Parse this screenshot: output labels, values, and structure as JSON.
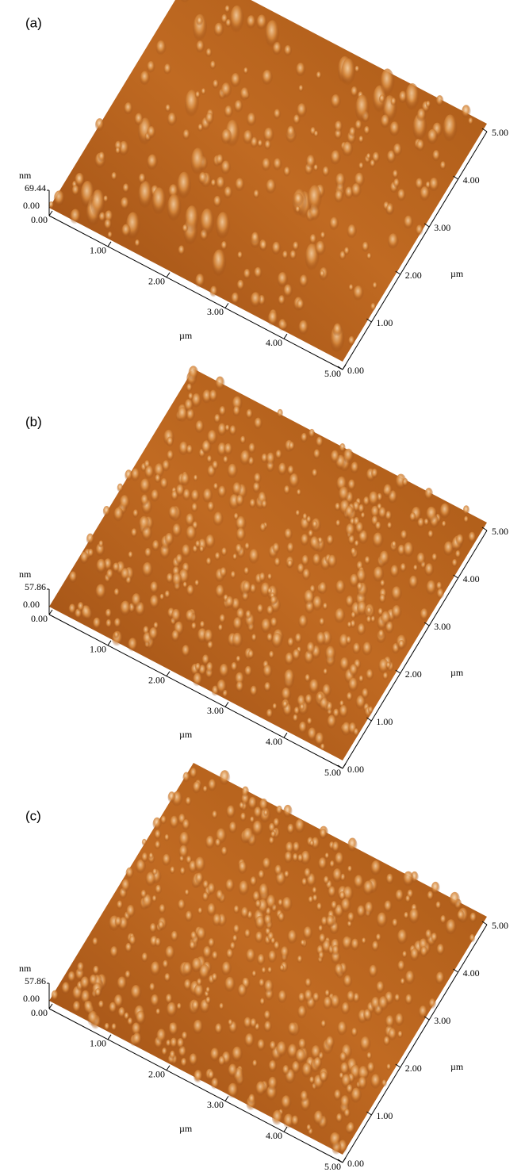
{
  "panels": [
    {
      "label": "(a)",
      "z_unit": "nm",
      "z_max": "69.44",
      "z_min": "0.00",
      "x_ticks": [
        "0.00",
        "1.00",
        "2.00",
        "3.00",
        "4.00",
        "5.00"
      ],
      "x_unit": "µm",
      "y_ticks": [
        "0.00",
        "1.00",
        "2.00",
        "3.00",
        "4.00",
        "5.00"
      ],
      "y_unit": "µm"
    },
    {
      "label": "(b)",
      "z_unit": "nm",
      "z_max": "57.86",
      "z_min": "0.00",
      "x_ticks": [
        "0.00",
        "1.00",
        "2.00",
        "3.00",
        "4.00",
        "5.00"
      ],
      "x_unit": "µm",
      "y_ticks": [
        "0.00",
        "1.00",
        "2.00",
        "3.00",
        "4.00",
        "5.00"
      ],
      "y_unit": "µm"
    },
    {
      "label": "(c)",
      "z_unit": "nm",
      "z_max": "57.86",
      "z_min": "0.00",
      "x_ticks": [
        "0.00",
        "1.00",
        "2.00",
        "3.00",
        "4.00",
        "5.00"
      ],
      "x_unit": "µm",
      "y_ticks": [
        "0.00",
        "1.00",
        "2.00",
        "3.00",
        "4.00",
        "5.00"
      ],
      "y_unit": "µm"
    }
  ]
}
